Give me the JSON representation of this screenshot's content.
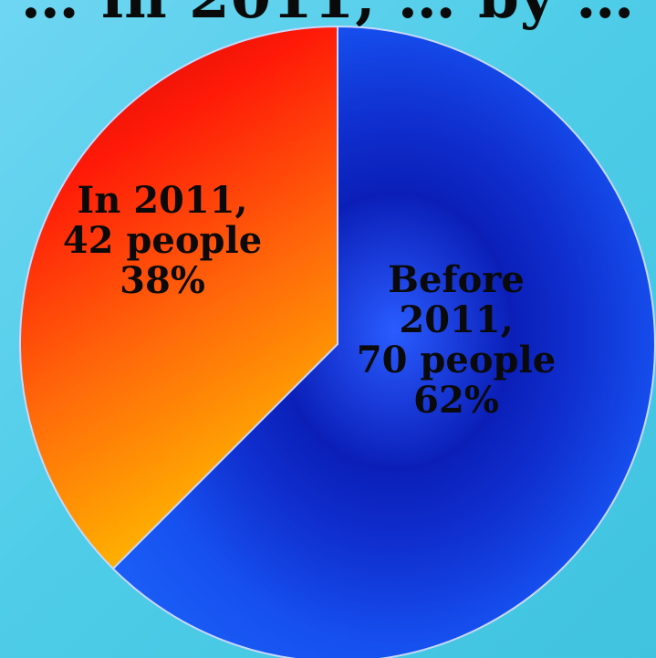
{
  "slide_title": "… in 2011, … by …",
  "chart_data": {
    "type": "pie",
    "title": "",
    "unit": "people",
    "slices": [
      {
        "label": "Before 2011",
        "value": 70,
        "percent": 62,
        "label_lines": [
          "Before",
          "2011,",
          "70 people",
          "62%"
        ],
        "color": "#1238d6"
      },
      {
        "label": "In 2011",
        "value": 42,
        "percent": 38,
        "label_lines": [
          "In 2011,",
          "42 people",
          "38%"
        ],
        "color": "#f23a10"
      }
    ],
    "start_angle_deg": 0,
    "direction": "clockwise",
    "legend": "none",
    "colors": {
      "background": "#4fcde8",
      "before_slice": "#1238d6",
      "in_slice_top": "#d91508",
      "in_slice_bottom": "#ffb000",
      "slice_border": "#c8d8ff"
    }
  }
}
